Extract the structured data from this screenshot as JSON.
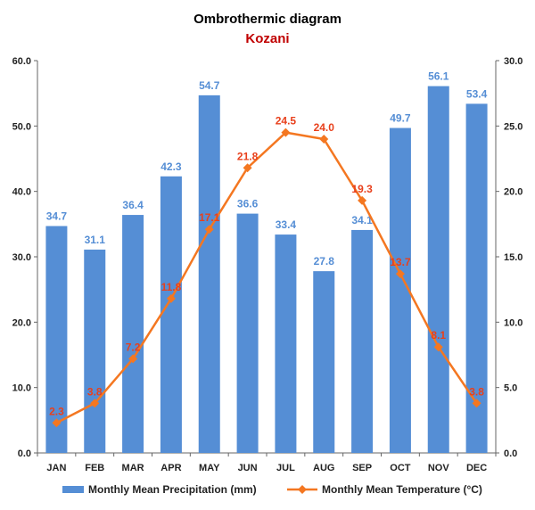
{
  "chart_data": {
    "type": "bar+line",
    "title": "Ombrothermic diagram",
    "subtitle": "Kozani",
    "categories": [
      "JAN",
      "FEB",
      "MAR",
      "APR",
      "MAY",
      "JUN",
      "JUL",
      "AUG",
      "SEP",
      "OCT",
      "NOV",
      "DEC"
    ],
    "series": [
      {
        "name": "Monthly Mean Precipitation (mm)",
        "type": "bar",
        "axis": "left",
        "values": [
          34.7,
          31.1,
          36.4,
          42.3,
          54.7,
          36.6,
          33.4,
          27.8,
          34.1,
          49.7,
          56.1,
          53.4
        ],
        "labels": [
          "34.7",
          "31.1",
          "36.4",
          "42.3",
          "54.7",
          "36.6",
          "33.4",
          "27.8",
          "34.1",
          "49.7",
          "56.1",
          "53.4"
        ]
      },
      {
        "name": "Monthly Mean Temperature (°C)",
        "type": "line",
        "axis": "right",
        "values": [
          2.3,
          3.8,
          7.2,
          11.8,
          17.1,
          21.8,
          24.5,
          24.0,
          19.3,
          13.7,
          8.1,
          3.8
        ],
        "labels": [
          "2.3",
          "3.8",
          "7.2",
          "11.8",
          "17.1",
          "21.8",
          "24.5",
          "24.0",
          "19.3",
          "13.7",
          "8.1",
          "3.8"
        ]
      }
    ],
    "y_left": {
      "min": 0,
      "max": 60,
      "ticks": [
        "0.0",
        "10.0",
        "20.0",
        "30.0",
        "40.0",
        "50.0",
        "60.0"
      ]
    },
    "y_right": {
      "min": 0,
      "max": 30,
      "ticks": [
        "0.0",
        "5.0",
        "10.0",
        "15.0",
        "20.0",
        "25.0",
        "30.0"
      ]
    },
    "legend_position": "bottom",
    "grid": false,
    "colors": {
      "bar": "#558ED5",
      "bar_label": "#558ED5",
      "line": "#F47721",
      "line_label": "#E8401C",
      "subtitle": "#C00000",
      "axis": "#666666"
    }
  }
}
